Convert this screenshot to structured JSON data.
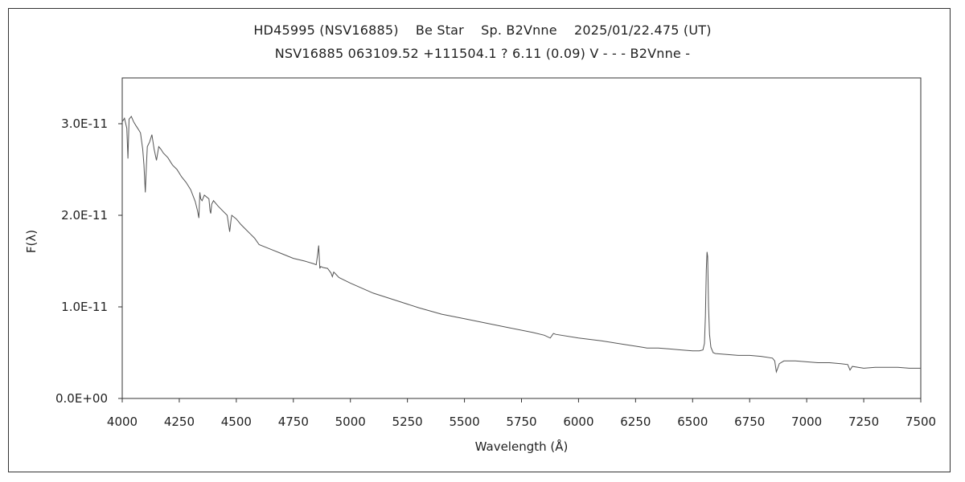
{
  "chart_data": {
    "type": "line",
    "title": "HD45995 (NSV16885)    Be Star    Sp. B2Vnne    2025/01/22.475 (UT)",
    "subtitle": "NSV16885 063109.52 +111504.1 ? 6.11 (0.09) V - - - B2Vnne -",
    "xlabel": "Wavelength (Å)",
    "ylabel": "F(λ)",
    "xlim": [
      4000,
      7500
    ],
    "ylim": [
      0,
      3.5e-11
    ],
    "x_ticks": [
      4000,
      4250,
      4500,
      4750,
      5000,
      5250,
      5500,
      5750,
      6000,
      6250,
      6500,
      6750,
      7000,
      7250,
      7500
    ],
    "x_tick_labels": [
      "4000",
      "4250",
      "4500",
      "4750",
      "5000",
      "5250",
      "5500",
      "5750",
      "6000",
      "6250",
      "6500",
      "6750",
      "7000",
      "7250",
      "7500"
    ],
    "y_ticks": [
      0,
      1e-11,
      2e-11,
      3e-11
    ],
    "y_tick_labels": [
      "0.0E+00",
      "1.0E-11",
      "2.0E-11",
      "3.0E-11"
    ],
    "grid": false,
    "legend": "none",
    "line_color": "#555555",
    "series": [
      {
        "x": [
          4000,
          4010,
          4020,
          4025,
          4030,
          4040,
          4050,
          4060,
          4070,
          4080,
          4090,
          4095,
          4101,
          4106,
          4110,
          4120,
          4130,
          4140,
          4150,
          4160,
          4170,
          4180,
          4200,
          4220,
          4240,
          4260,
          4280,
          4300,
          4320,
          4330,
          4336,
          4340,
          4344,
          4350,
          4360,
          4380,
          4385,
          4388,
          4392,
          4400,
          4420,
          4440,
          4460,
          4465,
          4471,
          4477,
          4480,
          4500,
          4520,
          4540,
          4560,
          4580,
          4600,
          4650,
          4700,
          4750,
          4800,
          4840,
          4850,
          4857,
          4861,
          4866,
          4870,
          4880,
          4900,
          4915,
          4921,
          4927,
          4935,
          4950,
          5000,
          5100,
          5200,
          5300,
          5400,
          5500,
          5600,
          5700,
          5800,
          5850,
          5876,
          5890,
          5900,
          6000,
          6100,
          6200,
          6280,
          6300,
          6350,
          6400,
          6450,
          6500,
          6530,
          6545,
          6552,
          6556,
          6560,
          6563,
          6566,
          6570,
          6574,
          6580,
          6590,
          6600,
          6650,
          6700,
          6750,
          6800,
          6850,
          6860,
          6867,
          6873,
          6880,
          6900,
          6950,
          7000,
          7050,
          7100,
          7150,
          7180,
          7190,
          7200,
          7250,
          7300,
          7350,
          7400,
          7450,
          7500
        ],
        "y": [
          3.02e-11,
          3.06e-11,
          2.95e-11,
          2.62e-11,
          3.05e-11,
          3.08e-11,
          3.02e-11,
          2.98e-11,
          2.94e-11,
          2.9e-11,
          2.72e-11,
          2.55e-11,
          2.25e-11,
          2.55e-11,
          2.75e-11,
          2.8e-11,
          2.88e-11,
          2.72e-11,
          2.6e-11,
          2.75e-11,
          2.72e-11,
          2.68e-11,
          2.63e-11,
          2.55e-11,
          2.5e-11,
          2.42e-11,
          2.36e-11,
          2.28e-11,
          2.15e-11,
          2.05e-11,
          1.97e-11,
          2.25e-11,
          2.18e-11,
          2.16e-11,
          2.22e-11,
          2.18e-11,
          2.05e-11,
          2.02e-11,
          2.12e-11,
          2.16e-11,
          2.1e-11,
          2.05e-11,
          2e-11,
          1.92e-11,
          1.82e-11,
          1.95e-11,
          2e-11,
          1.96e-11,
          1.9e-11,
          1.85e-11,
          1.8e-11,
          1.75e-11,
          1.68e-11,
          1.63e-11,
          1.58e-11,
          1.53e-11,
          1.5e-11,
          1.47e-11,
          1.46e-11,
          1.58e-11,
          1.67e-11,
          1.42e-11,
          1.44e-11,
          1.43e-11,
          1.42e-11,
          1.37e-11,
          1.33e-11,
          1.38e-11,
          1.36e-11,
          1.32e-11,
          1.26e-11,
          1.15e-11,
          1.07e-11,
          9.9e-12,
          9.2e-12,
          8.7e-12,
          8.2e-12,
          7.7e-12,
          7.2e-12,
          6.9e-12,
          6.6e-12,
          7.1e-12,
          7e-12,
          6.6e-12,
          6.3e-12,
          5.9e-12,
          5.6e-12,
          5.5e-12,
          5.5e-12,
          5.4e-12,
          5.3e-12,
          5.2e-12,
          5.2e-12,
          5.3e-12,
          6e-12,
          9e-12,
          1.4e-11,
          1.6e-11,
          1.55e-11,
          1e-11,
          7e-12,
          5.6e-12,
          5e-12,
          4.9e-12,
          4.8e-12,
          4.7e-12,
          4.7e-12,
          4.6e-12,
          4.4e-12,
          4.1e-12,
          2.9e-12,
          3.3e-12,
          3.8e-12,
          4.1e-12,
          4.1e-12,
          4e-12,
          3.9e-12,
          3.9e-12,
          3.8e-12,
          3.7e-12,
          3.1e-12,
          3.5e-12,
          3.3e-12,
          3.4e-12,
          3.4e-12,
          3.4e-12,
          3.3e-12,
          3.3e-12
        ]
      }
    ]
  }
}
